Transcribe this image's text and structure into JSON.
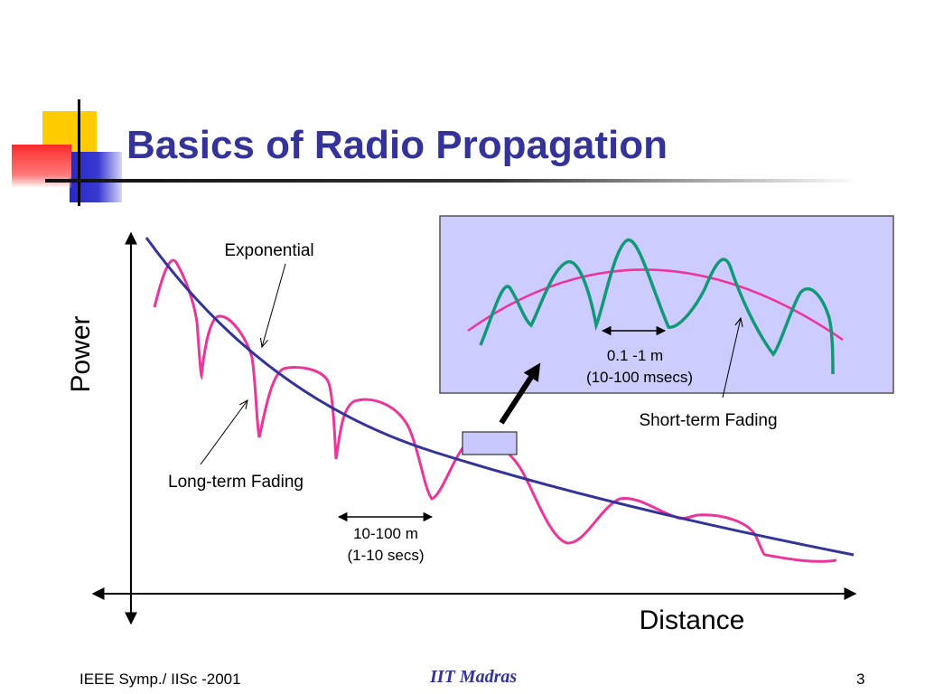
{
  "slide": {
    "title": "Basics of Radio Propagation",
    "footer_left": "IEEE Symp./ IISc -2001",
    "footer_center": "IIT Madras",
    "footer_right": "3"
  },
  "diagram": {
    "y_axis_label": "Power",
    "x_axis_label": "Distance",
    "exponential_label": "Exponential",
    "long_term_fading_label": "Long-term Fading",
    "long_term_span_line1": "10-100 m",
    "long_term_span_line2": "(1-10 secs)",
    "short_term_fading_label": "Short-term Fading",
    "short_term_span_line1": "0.1 -1 m",
    "short_term_span_line2": "(10-100 msecs)"
  },
  "colors": {
    "title": "#333399",
    "exponential_curve": "#333399",
    "long_term_curve": "#ee3399",
    "short_term_curve": "#119977",
    "inset_fill": "#ccccff",
    "logo_yellow": "#ffcc00",
    "logo_blue": "#3333cc",
    "logo_red": "#ff3333"
  }
}
